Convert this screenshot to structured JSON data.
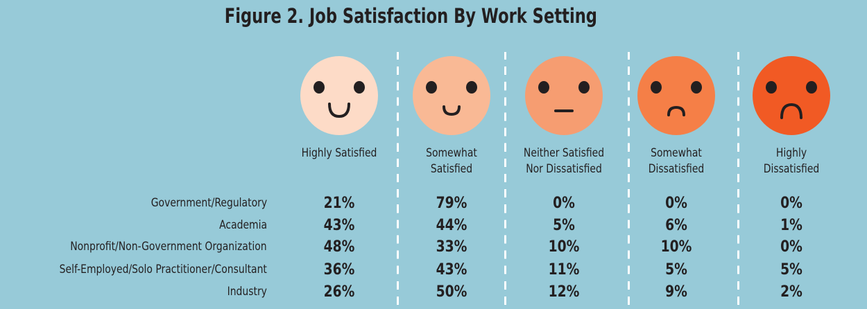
{
  "chart_data": {
    "type": "table",
    "title": "Figure 2. Job Satisfaction By Work Setting",
    "columns": [
      {
        "label_lines": [
          "Highly Satisfied"
        ],
        "color": "#fddbc7",
        "icon": "big-smile-face-icon"
      },
      {
        "label_lines": [
          "Somewhat",
          "Satisfied"
        ],
        "color": "#f9b995",
        "icon": "small-smile-face-icon"
      },
      {
        "label_lines": [
          "Neither Satisfied",
          "Nor Dissatisfied"
        ],
        "color": "#f69d71",
        "icon": "neutral-face-icon"
      },
      {
        "label_lines": [
          "Somewhat",
          "Dissatisfied"
        ],
        "color": "#f57f47",
        "icon": "small-frown-face-icon"
      },
      {
        "label_lines": [
          "Highly",
          "Dissatisfied"
        ],
        "color": "#f15a24",
        "icon": "big-frown-face-icon"
      }
    ],
    "rows": [
      {
        "label": "Government/Regulatory",
        "values": [
          "21%",
          "79%",
          "0%",
          "0%",
          "0%"
        ]
      },
      {
        "label": "Academia",
        "values": [
          "43%",
          "44%",
          "5%",
          "6%",
          "1%"
        ]
      },
      {
        "label": "Nonprofit/Non-Government Organization",
        "values": [
          "48%",
          "33%",
          "10%",
          "10%",
          "0%"
        ]
      },
      {
        "label": "Self-Employed/Solo Practitioner/Consultant",
        "values": [
          "36%",
          "43%",
          "11%",
          "5%",
          "5%"
        ]
      },
      {
        "label": "Industry",
        "values": [
          "26%",
          "50%",
          "12%",
          "9%",
          "2%"
        ]
      }
    ],
    "background": "#97cad8"
  }
}
